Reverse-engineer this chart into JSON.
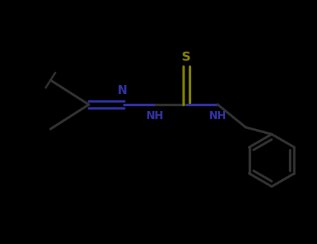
{
  "background_color": "#000000",
  "bond_color": "#333333",
  "N_color": "#3333aa",
  "S_color": "#888800",
  "line_width": 2.5,
  "font_size": 11,
  "label_color_N": "#3333aa",
  "label_color_S": "#888800",
  "figsize": [
    4.55,
    3.5
  ],
  "dpi": 100,
  "xlim": [
    0,
    9
  ],
  "ylim": [
    0,
    7
  ],
  "C1x": 2.5,
  "C1y": 4.0,
  "Me1x": 1.4,
  "Me1y": 4.7,
  "Me2x": 1.4,
  "Me2y": 3.3,
  "N1x": 3.5,
  "N1y": 4.0,
  "N2x": 4.4,
  "N2y": 4.0,
  "C2x": 5.3,
  "C2y": 4.0,
  "Sx": 5.3,
  "Sy": 5.1,
  "N3x": 6.2,
  "N3y": 4.0,
  "CH2x": 7.0,
  "CH2y": 3.35,
  "BenzX": 7.75,
  "BenzY": 2.4,
  "benz_r": 0.75
}
